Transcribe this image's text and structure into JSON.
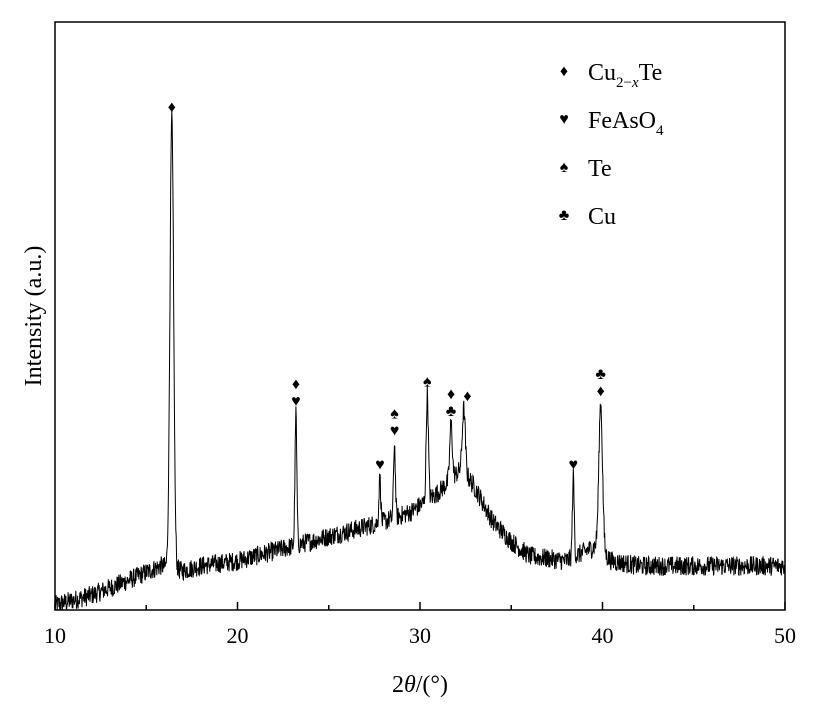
{
  "chart_data": {
    "type": "line",
    "xlabel_prefix": "2",
    "xlabel_theta": "θ",
    "xlabel_suffix": "/(°)",
    "ylabel": "Intensity (a.u.)",
    "xlim": [
      10,
      50
    ],
    "ylim": [
      0,
      1.2
    ],
    "x_ticks": [
      10,
      20,
      30,
      40,
      50
    ],
    "x_minor_step": 5,
    "y_ticks_shown": false,
    "grid": false,
    "legend_position": "top-right",
    "baseline": [
      {
        "x": 10,
        "y": 0.01
      },
      {
        "x": 12,
        "y": 0.03
      },
      {
        "x": 14,
        "y": 0.06
      },
      {
        "x": 15.8,
        "y": 0.09
      },
      {
        "x": 17,
        "y": 0.08
      },
      {
        "x": 18,
        "y": 0.09
      },
      {
        "x": 20,
        "y": 0.1
      },
      {
        "x": 22,
        "y": 0.12
      },
      {
        "x": 24,
        "y": 0.14
      },
      {
        "x": 26,
        "y": 0.16
      },
      {
        "x": 28,
        "y": 0.18
      },
      {
        "x": 29.5,
        "y": 0.2
      },
      {
        "x": 31,
        "y": 0.24
      },
      {
        "x": 32.3,
        "y": 0.29
      },
      {
        "x": 33,
        "y": 0.25
      },
      {
        "x": 34,
        "y": 0.18
      },
      {
        "x": 35,
        "y": 0.14
      },
      {
        "x": 36,
        "y": 0.11
      },
      {
        "x": 38,
        "y": 0.1
      },
      {
        "x": 39.6,
        "y": 0.13
      },
      {
        "x": 40.5,
        "y": 0.1
      },
      {
        "x": 42,
        "y": 0.09
      },
      {
        "x": 45,
        "y": 0.09
      },
      {
        "x": 50,
        "y": 0.09
      }
    ],
    "peaks": [
      {
        "x": 16.4,
        "y": 1.0,
        "width": 0.1
      },
      {
        "x": 23.2,
        "y": 0.4,
        "width": 0.05
      },
      {
        "x": 27.8,
        "y": 0.27,
        "width": 0.05
      },
      {
        "x": 28.6,
        "y": 0.34,
        "width": 0.05
      },
      {
        "x": 30.4,
        "y": 0.44,
        "width": 0.06
      },
      {
        "x": 31.7,
        "y": 0.38,
        "width": 0.07
      },
      {
        "x": 32.4,
        "y": 0.41,
        "width": 0.08
      },
      {
        "x": 38.4,
        "y": 0.27,
        "width": 0.05
      },
      {
        "x": 39.9,
        "y": 0.42,
        "width": 0.1
      }
    ],
    "noise_amplitude": 0.02,
    "phases": [
      {
        "name": "Cu",
        "sub": "2−",
        "sub_italic": "x",
        "after": "Te",
        "symbol": "♦"
      },
      {
        "name": "FeAsO",
        "sub": "4",
        "sub_italic": "",
        "after": "",
        "symbol": "♥"
      },
      {
        "name": "Te",
        "sub": "",
        "sub_italic": "",
        "after": "",
        "symbol": "♠"
      },
      {
        "name": "Cu",
        "sub": "",
        "sub_italic": "",
        "after": "",
        "symbol": "♣"
      }
    ],
    "annotations": [
      {
        "x": 16.4,
        "symbols": [
          "♦"
        ]
      },
      {
        "x": 23.2,
        "symbols": [
          "♥",
          "♦"
        ]
      },
      {
        "x": 27.8,
        "symbols": [
          "♥"
        ]
      },
      {
        "x": 28.6,
        "symbols": [
          "♥",
          "♠"
        ]
      },
      {
        "x": 30.4,
        "symbols": [
          "♠"
        ]
      },
      {
        "x": 31.7,
        "symbols": [
          "♣",
          "♦"
        ]
      },
      {
        "x": 32.6,
        "symbols": [
          "♦"
        ]
      },
      {
        "x": 38.4,
        "symbols": [
          "♥"
        ]
      },
      {
        "x": 39.9,
        "symbols": [
          "♦",
          "♣"
        ]
      }
    ]
  }
}
